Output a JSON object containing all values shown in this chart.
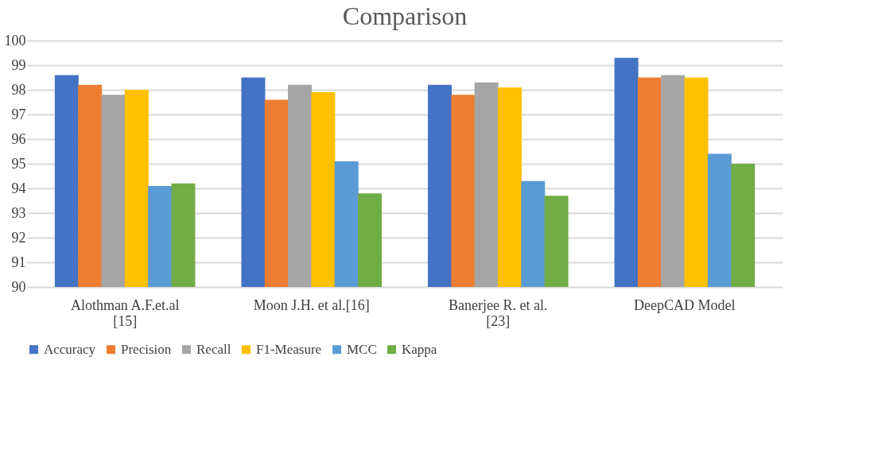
{
  "chart_data": {
    "type": "bar",
    "title": "Comparison",
    "categories": [
      "Alothman A.F.et.al [15]",
      "Moon J.H. et al.[16]",
      "Banerjee R. et al. [23]",
      "DeepCAD Model"
    ],
    "series": [
      {
        "name": "Accuracy",
        "color": "#4472c4",
        "values": [
          98.6,
          98.5,
          98.2,
          99.3
        ]
      },
      {
        "name": "Precision",
        "color": "#ed7d31",
        "values": [
          98.2,
          97.6,
          97.8,
          98.5
        ]
      },
      {
        "name": "Recall",
        "color": "#a5a5a5",
        "values": [
          97.8,
          98.2,
          98.3,
          98.6
        ]
      },
      {
        "name": "F1-Measure",
        "color": "#ffc000",
        "values": [
          98.0,
          97.9,
          98.1,
          98.5
        ]
      },
      {
        "name": "MCC",
        "color": "#5b9bd5",
        "values": [
          94.1,
          95.1,
          94.3,
          95.4
        ]
      },
      {
        "name": "Kappa",
        "color": "#70ad47",
        "values": [
          94.2,
          93.8,
          93.7,
          95.0
        ]
      }
    ],
    "ylim": [
      90,
      100
    ],
    "yticks": [
      90,
      91,
      92,
      93,
      94,
      95,
      96,
      97,
      98,
      99,
      100
    ],
    "grid": "y",
    "legend": "bottom"
  }
}
